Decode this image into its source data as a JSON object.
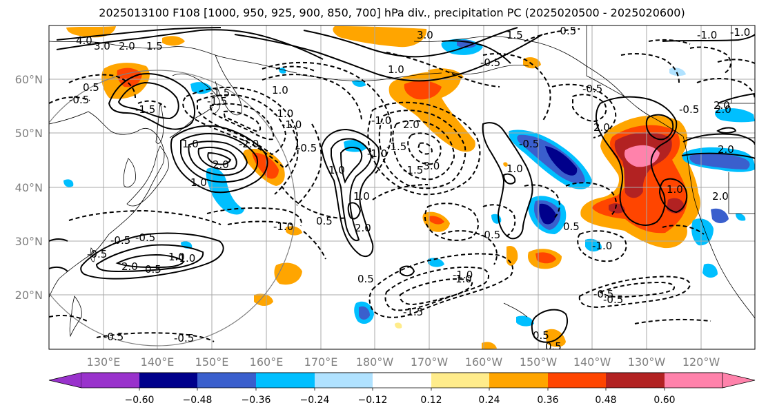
{
  "title": "2025013100 F108 [1000, 950, 925, 900, 850, 700] hPa div., precipitation PC (2025020500 - 2025020600)",
  "lat_labels": [
    "60°N",
    "50°N",
    "40°N",
    "30°N",
    "20°N"
  ],
  "lon_labels": [
    "130°E",
    "140°E",
    "150°E",
    "160°E",
    "170°E",
    "180°W",
    "170°W",
    "160°W",
    "150°W",
    "140°W",
    "130°W",
    "120°W"
  ],
  "colorbar": {
    "ticks": [
      "−0.60",
      "−0.48",
      "−0.36",
      "−0.24",
      "−0.12",
      "0.12",
      "0.24",
      "0.36",
      "0.48",
      "0.60"
    ],
    "colors": [
      "#9932cc",
      "#00008b",
      "#3a5fcd",
      "#00bfff",
      "#b0e2ff",
      "#ffffff",
      "#ffec8b",
      "#ffa500",
      "#ff4500",
      "#b22222",
      "#ff82ab"
    ]
  },
  "contour_labels": [
    "4.0",
    "3.0",
    "2.0",
    "1.5",
    "0.5",
    "-1.5",
    "-1.5",
    "1.0",
    "-1.0",
    "-2.0",
    "2.0",
    "-0.5",
    "-1.0",
    "-3.0",
    "1.0",
    "2.0",
    "0.5",
    "-1.0",
    "-1.5",
    "-1.5",
    "2.0",
    "1.0",
    "-0.5",
    "1.5",
    "-0.5",
    "3.0",
    "-1.0",
    "-0.5",
    "2.0",
    "-0.5",
    "0.5",
    "-0.5",
    "2.0",
    "1.0",
    "0.5",
    "-0.5",
    "-0.5",
    "2.0",
    "2.0",
    "0.5",
    "-1.0",
    "1.0",
    "-1.0",
    "-0.5",
    "1.0",
    "2.0",
    "-1.0",
    "0.5",
    "-0.5",
    "-0.5",
    "1.0",
    "-1.0",
    "-0.5",
    "1.0",
    "1.0",
    "-0.5",
    "-1.0",
    "2.0",
    "-1.5",
    "-1.0",
    "-1.5",
    "-0.5",
    "1.0",
    "-0.5",
    "0.5"
  ]
}
